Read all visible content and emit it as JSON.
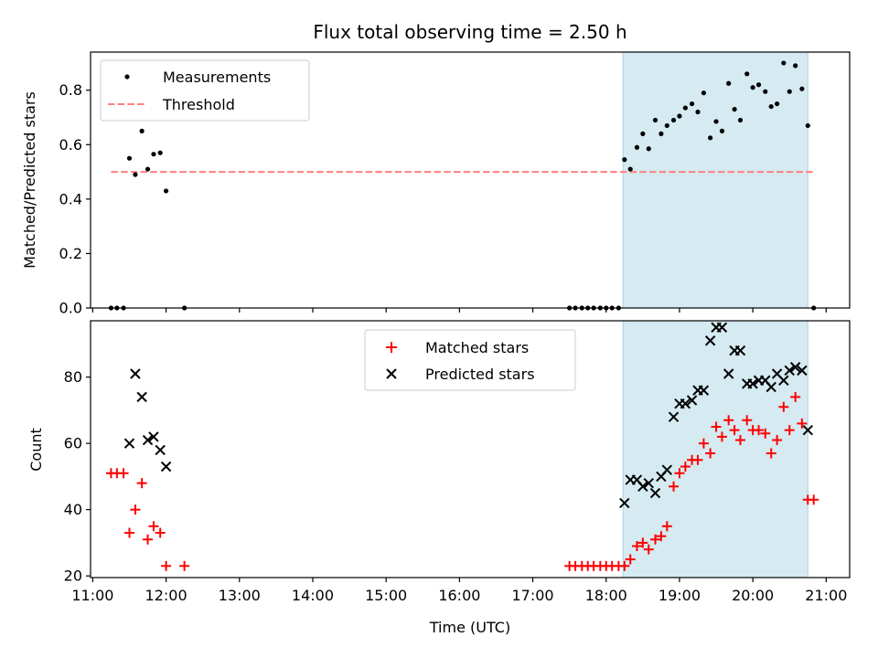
{
  "chart_data": {
    "title": "Flux total observing time = 2.50 h",
    "xlabel": "Time (UTC)",
    "x_ticks": [
      "11:00",
      "12:00",
      "13:00",
      "14:00",
      "15:00",
      "16:00",
      "17:00",
      "18:00",
      "19:00",
      "20:00",
      "21:00"
    ],
    "x_range_hours": [
      10.97,
      21.32
    ],
    "highlight_span_hours": [
      18.23,
      20.75
    ],
    "highlight_color": "#d5eaf1",
    "panels": [
      {
        "type": "scatter",
        "ylabel": "Matched/Predicted stars",
        "ylim": [
          0,
          0.94
        ],
        "y_ticks": [
          "0.0",
          "0.2",
          "0.4",
          "0.6",
          "0.8"
        ],
        "y_tick_values": [
          0,
          0.2,
          0.4,
          0.6,
          0.8
        ],
        "legend": {
          "position": "upper left",
          "entries": [
            "Measurements",
            "Threshold"
          ]
        },
        "threshold": {
          "name": "Threshold",
          "y": 0.5,
          "x_range_hours": [
            11.25,
            20.83
          ],
          "color": "#ff7f7f",
          "style": "dashed"
        },
        "series": [
          {
            "name": "Measurements",
            "marker": "dot",
            "color": "#000000",
            "points": [
              [
                11.25,
                0
              ],
              [
                11.33,
                0
              ],
              [
                11.42,
                0
              ],
              [
                11.5,
                0.55
              ],
              [
                11.58,
                0.49
              ],
              [
                11.67,
                0.65
              ],
              [
                11.75,
                0.51
              ],
              [
                11.83,
                0.565
              ],
              [
                11.92,
                0.57
              ],
              [
                12.0,
                0.43
              ],
              [
                12.25,
                0
              ],
              [
                17.5,
                0
              ],
              [
                17.58,
                0
              ],
              [
                17.67,
                0
              ],
              [
                17.75,
                0
              ],
              [
                17.83,
                0
              ],
              [
                17.92,
                0
              ],
              [
                18.0,
                0
              ],
              [
                18.08,
                0
              ],
              [
                18.17,
                0
              ],
              [
                18.25,
                0.545
              ],
              [
                18.33,
                0.51
              ],
              [
                18.42,
                0.59
              ],
              [
                18.5,
                0.64
              ],
              [
                18.58,
                0.585
              ],
              [
                18.67,
                0.69
              ],
              [
                18.75,
                0.64
              ],
              [
                18.83,
                0.67
              ],
              [
                18.92,
                0.69
              ],
              [
                19.0,
                0.705
              ],
              [
                19.08,
                0.735
              ],
              [
                19.17,
                0.75
              ],
              [
                19.25,
                0.72
              ],
              [
                19.33,
                0.79
              ],
              [
                19.42,
                0.625
              ],
              [
                19.5,
                0.685
              ],
              [
                19.58,
                0.65
              ],
              [
                19.67,
                0.825
              ],
              [
                19.75,
                0.73
              ],
              [
                19.83,
                0.69
              ],
              [
                19.92,
                0.86
              ],
              [
                20.0,
                0.81
              ],
              [
                20.08,
                0.82
              ],
              [
                20.17,
                0.795
              ],
              [
                20.25,
                0.74
              ],
              [
                20.33,
                0.75
              ],
              [
                20.42,
                0.9
              ],
              [
                20.5,
                0.795
              ],
              [
                20.58,
                0.89
              ],
              [
                20.67,
                0.805
              ],
              [
                20.75,
                0.67
              ],
              [
                20.83,
                0
              ]
            ]
          }
        ]
      },
      {
        "type": "scatter",
        "ylabel": "Count",
        "ylim": [
          19.5,
          97
        ],
        "y_ticks": [
          "20",
          "40",
          "60",
          "80"
        ],
        "y_tick_values": [
          20,
          40,
          60,
          80
        ],
        "legend": {
          "position": "upper center",
          "entries": [
            "Matched stars",
            "Predicted stars"
          ]
        },
        "series": [
          {
            "name": "Matched stars",
            "marker": "plus",
            "color": "#ff0000",
            "points": [
              [
                11.25,
                51
              ],
              [
                11.33,
                51
              ],
              [
                11.42,
                51
              ],
              [
                11.5,
                33
              ],
              [
                11.58,
                40
              ],
              [
                11.67,
                48
              ],
              [
                11.75,
                31
              ],
              [
                11.83,
                35
              ],
              [
                11.92,
                33
              ],
              [
                12.0,
                23
              ],
              [
                12.25,
                23
              ],
              [
                17.5,
                23
              ],
              [
                17.58,
                23
              ],
              [
                17.67,
                23
              ],
              [
                17.75,
                23
              ],
              [
                17.83,
                23
              ],
              [
                17.92,
                23
              ],
              [
                18.0,
                23
              ],
              [
                18.08,
                23
              ],
              [
                18.17,
                23
              ],
              [
                18.25,
                23
              ],
              [
                18.33,
                25
              ],
              [
                18.42,
                29
              ],
              [
                18.5,
                30
              ],
              [
                18.58,
                28
              ],
              [
                18.67,
                31
              ],
              [
                18.75,
                32
              ],
              [
                18.83,
                35
              ],
              [
                18.92,
                47
              ],
              [
                19.0,
                51
              ],
              [
                19.08,
                53
              ],
              [
                19.17,
                55
              ],
              [
                19.25,
                55
              ],
              [
                19.33,
                60
              ],
              [
                19.42,
                57
              ],
              [
                19.5,
                65
              ],
              [
                19.58,
                62
              ],
              [
                19.67,
                67
              ],
              [
                19.75,
                64
              ],
              [
                19.83,
                61
              ],
              [
                19.92,
                67
              ],
              [
                20.0,
                64
              ],
              [
                20.08,
                64
              ],
              [
                20.17,
                63
              ],
              [
                20.25,
                57
              ],
              [
                20.33,
                61
              ],
              [
                20.42,
                71
              ],
              [
                20.5,
                64
              ],
              [
                20.58,
                74
              ],
              [
                20.67,
                66
              ],
              [
                20.75,
                43
              ],
              [
                20.83,
                43
              ]
            ]
          },
          {
            "name": "Predicted stars",
            "marker": "x",
            "color": "#000000",
            "points": [
              [
                11.5,
                60
              ],
              [
                11.58,
                81
              ],
              [
                11.67,
                74
              ],
              [
                11.75,
                61
              ],
              [
                11.83,
                62
              ],
              [
                11.92,
                58
              ],
              [
                12.0,
                53
              ],
              [
                18.25,
                42
              ],
              [
                18.33,
                49
              ],
              [
                18.42,
                49
              ],
              [
                18.5,
                47
              ],
              [
                18.58,
                48
              ],
              [
                18.67,
                45
              ],
              [
                18.75,
                50
              ],
              [
                18.83,
                52
              ],
              [
                18.92,
                68
              ],
              [
                19.0,
                72
              ],
              [
                19.08,
                72
              ],
              [
                19.17,
                73
              ],
              [
                19.25,
                76
              ],
              [
                19.33,
                76
              ],
              [
                19.42,
                91
              ],
              [
                19.5,
                95
              ],
              [
                19.58,
                95
              ],
              [
                19.67,
                81
              ],
              [
                19.75,
                88
              ],
              [
                19.83,
                88
              ],
              [
                19.92,
                78
              ],
              [
                20.0,
                78
              ],
              [
                20.08,
                79
              ],
              [
                20.17,
                79
              ],
              [
                20.25,
                77
              ],
              [
                20.33,
                81
              ],
              [
                20.42,
                79
              ],
              [
                20.5,
                82
              ],
              [
                20.58,
                83
              ],
              [
                20.67,
                82
              ],
              [
                20.75,
                64
              ]
            ]
          }
        ]
      }
    ]
  }
}
